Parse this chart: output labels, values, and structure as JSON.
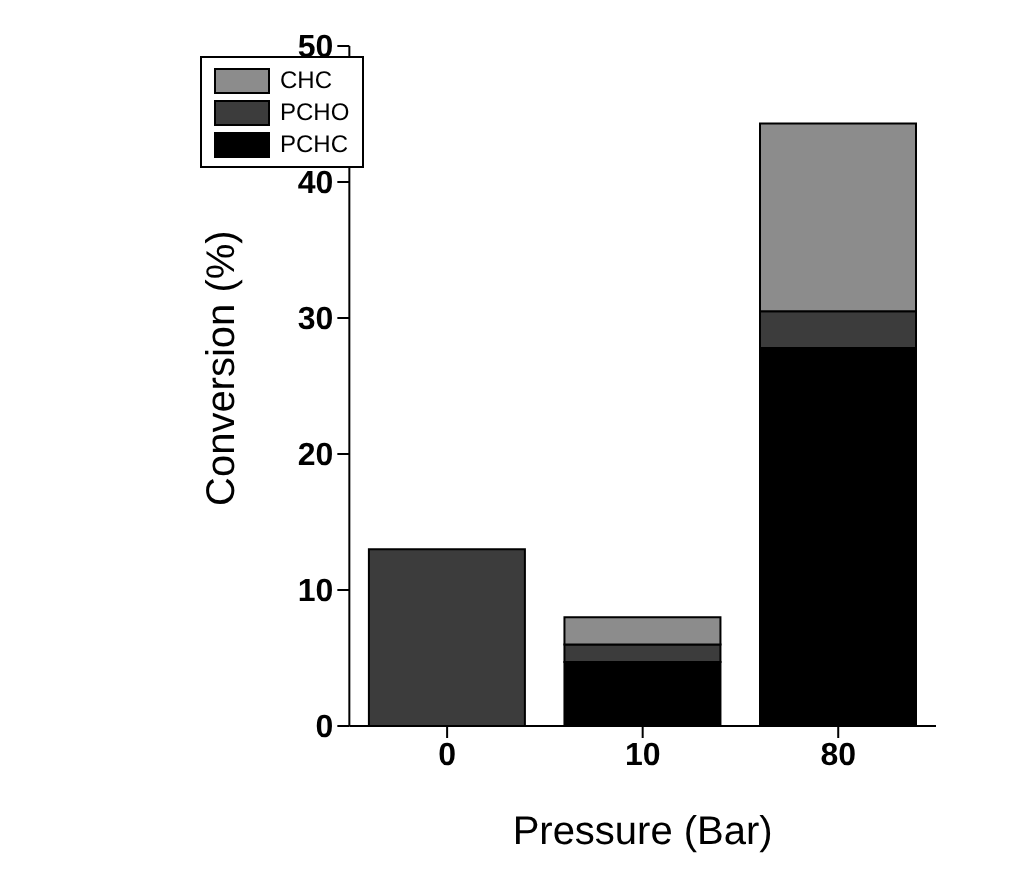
{
  "chart_data": {
    "type": "bar",
    "stacked": true,
    "xlabel": "Pressure (Bar)",
    "ylabel": "Conversion (%)",
    "categories": [
      "0",
      "10",
      "80"
    ],
    "series": [
      {
        "name": "PCHC",
        "color": "#000000",
        "values": [
          0,
          4.7,
          27.8
        ]
      },
      {
        "name": "PCHO",
        "color": "#3c3c3c",
        "values": [
          13,
          1.3,
          2.7
        ]
      },
      {
        "name": "CHC",
        "color": "#8c8c8c",
        "values": [
          0,
          2.0,
          13.8
        ]
      }
    ],
    "ylim": [
      0,
      50
    ],
    "yticks": [
      0,
      10,
      20,
      30,
      40,
      50
    ],
    "legend": "top left"
  }
}
